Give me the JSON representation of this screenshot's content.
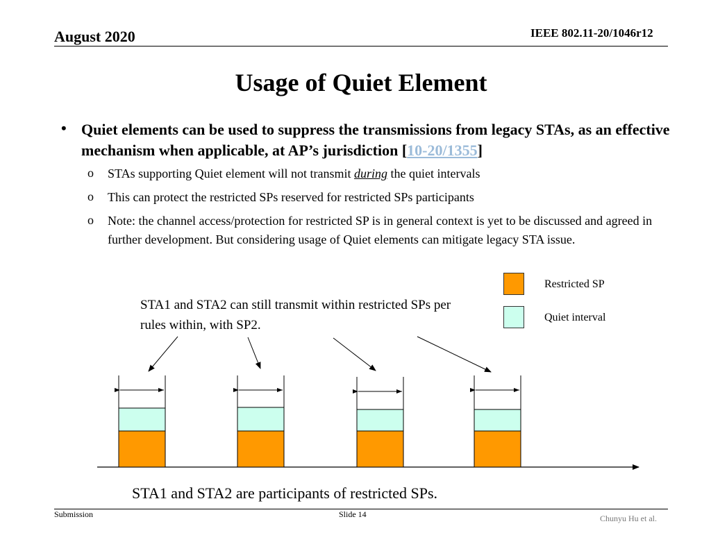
{
  "header": {
    "date": "August 2020",
    "doc_id": "IEEE 802.11-20/1046r12"
  },
  "title": "Usage of Quiet Element",
  "bullet": {
    "marker": "•",
    "text_before": "Quiet elements can be used to suppress the transmissions from legacy STAs, as an effective mechanism when applicable, at AP’s jurisdiction [",
    "ref": "10-20/1355",
    "text_after": "]"
  },
  "sub_bullets": [
    {
      "marker": "o",
      "before": "STAs supporting Quiet element will not transmit ",
      "emph": "during",
      "after": " the quiet intervals"
    },
    {
      "marker": "o",
      "text": "This can protect the restricted SPs reserved for restricted SPs participants"
    },
    {
      "marker": "o",
      "text": "Note: the channel access/protection for restricted SP is in general context is yet to be discussed and agreed in further development. But considering usage of Quiet elements can mitigate legacy STA issue."
    }
  ],
  "legend": [
    {
      "label": "Restricted SP",
      "color": "#ff9900"
    },
    {
      "label": "Quiet interval",
      "color": "#ccffee"
    }
  ],
  "callout": "STA1 and STA2 can still transmit within restricted SPs per rules within, with SP2.",
  "caption": "STA1 and STA2 are participants of restricted SPs.",
  "footer": {
    "left": "Submission",
    "center": "Slide 14",
    "right": "Chunyu Hu et al."
  },
  "colors": {
    "restricted_sp": "#ff9900",
    "quiet_interval": "#ccffee",
    "link": "#9bbbd9"
  }
}
